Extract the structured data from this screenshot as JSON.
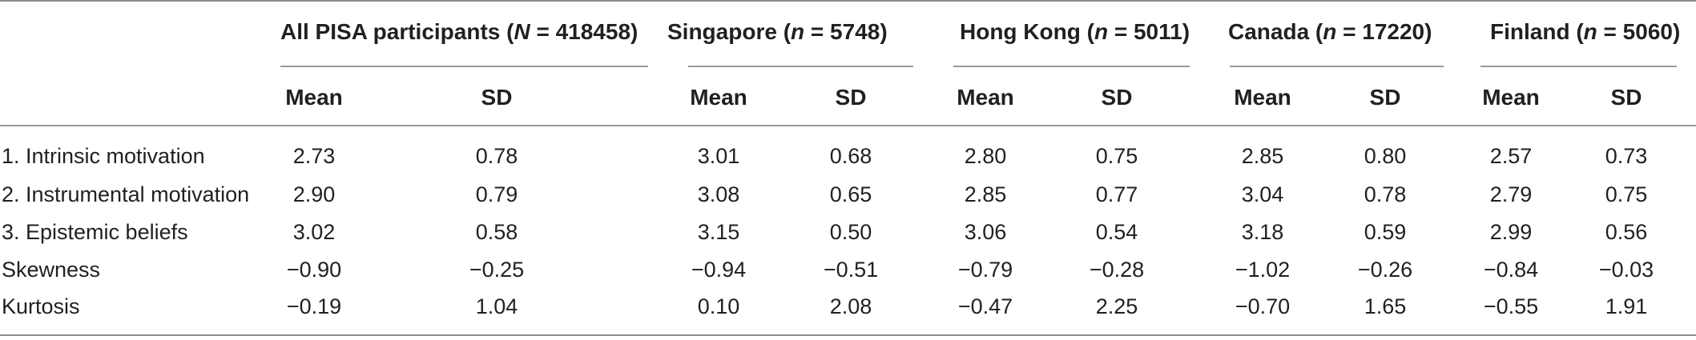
{
  "groups": [
    {
      "name": "All PISA participants",
      "n_label": "N",
      "n_value": "418458"
    },
    {
      "name": "Singapore",
      "n_label": "n",
      "n_value": "5748"
    },
    {
      "name": "Hong Kong",
      "n_label": "n",
      "n_value": "5011"
    },
    {
      "name": "Canada",
      "n_label": "n",
      "n_value": "17220"
    },
    {
      "name": "Finland",
      "n_label": "n",
      "n_value": "5060"
    }
  ],
  "stat_headers": {
    "mean": "Mean",
    "sd": "SD"
  },
  "rows": [
    {
      "label": "1. Intrinsic motivation",
      "values": [
        "2.73",
        "0.78",
        "3.01",
        "0.68",
        "2.80",
        "0.75",
        "2.85",
        "0.80",
        "2.57",
        "0.73"
      ]
    },
    {
      "label": "2. Instrumental motivation",
      "values": [
        "2.90",
        "0.79",
        "3.08",
        "0.65",
        "2.85",
        "0.77",
        "3.04",
        "0.78",
        "2.79",
        "0.75"
      ]
    },
    {
      "label": "3. Epistemic beliefs",
      "values": [
        "3.02",
        "0.58",
        "3.15",
        "0.50",
        "3.06",
        "0.54",
        "3.18",
        "0.59",
        "2.99",
        "0.56"
      ]
    },
    {
      "label": "Skewness",
      "values": [
        "−0.90",
        "−0.25",
        "−0.94",
        "−0.51",
        "−0.79",
        "−0.28",
        "−1.02",
        "−0.26",
        "−0.84",
        "−0.03"
      ]
    },
    {
      "label": "Kurtosis",
      "values": [
        "−0.19",
        "1.04",
        "0.10",
        "2.08",
        "−0.47",
        "2.25",
        "−0.70",
        "1.65",
        "−0.55",
        "1.91"
      ]
    }
  ]
}
